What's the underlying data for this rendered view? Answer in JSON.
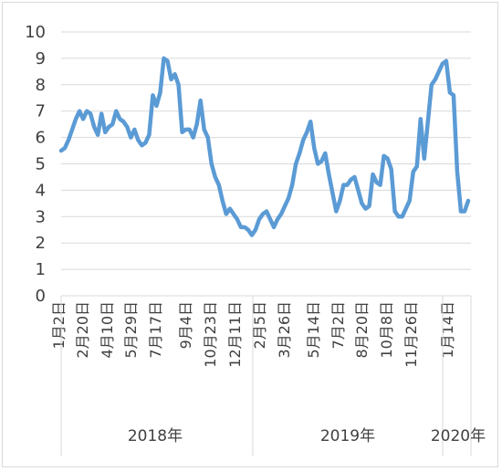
{
  "chart_data": {
    "type": "line",
    "title": "",
    "xlabel": "",
    "ylabel": "",
    "ylim": [
      0,
      10
    ],
    "yticks": [
      "0",
      "1",
      "2",
      "3",
      "4",
      "5",
      "6",
      "7",
      "8",
      "9",
      "10"
    ],
    "grid": "horizontal",
    "legend": "none",
    "line_color": "#5b9bd5",
    "x_tick_labels": [
      "1月2日",
      "2月20日",
      "4月10日",
      "5月29日",
      "7月17日",
      "9月4日",
      "10月23日",
      "12月11日",
      "2月5日",
      "3月26日",
      "5月14日",
      "7月2日",
      "8月20日",
      "10月8日",
      "11月26日",
      "1月14日"
    ],
    "years": [
      "2018年",
      "2019年",
      "2020年"
    ],
    "series": [
      {
        "values": [
          5.5,
          5.6,
          5.9,
          6.3,
          6.7,
          7.0,
          6.7,
          7.0,
          6.9,
          6.4,
          6.1,
          6.9,
          6.2,
          6.4,
          6.5,
          7.0,
          6.7,
          6.6,
          6.4,
          6.0,
          6.3,
          5.9,
          5.7,
          5.8,
          6.1,
          7.6,
          7.2,
          7.7,
          9.0,
          8.9,
          8.2,
          8.4,
          8.0,
          6.2,
          6.3,
          6.3,
          6.0,
          6.5,
          7.4,
          6.3,
          6.0,
          5.0,
          4.5,
          4.2,
          3.6,
          3.1,
          3.3,
          3.1,
          2.9,
          2.6,
          2.6,
          2.5,
          2.3,
          2.5,
          2.9,
          3.1,
          3.2,
          2.9,
          2.6,
          2.9,
          3.1,
          3.4,
          3.7,
          4.2,
          5.0,
          5.4,
          5.9,
          6.2,
          6.6,
          5.6,
          5.0,
          5.1,
          5.4,
          4.6,
          3.9,
          3.2,
          3.6,
          4.2,
          4.2,
          4.4,
          4.5,
          4.0,
          3.5,
          3.3,
          3.4,
          4.6,
          4.3,
          4.2,
          5.3,
          5.2,
          4.8,
          3.2,
          3.0,
          3.0,
          3.3,
          3.6,
          4.7,
          4.9,
          6.7,
          5.2,
          6.6,
          8.0,
          8.2,
          8.5,
          8.8,
          8.9,
          7.7,
          7.6,
          4.7,
          3.2,
          3.2,
          3.6
        ]
      }
    ]
  }
}
